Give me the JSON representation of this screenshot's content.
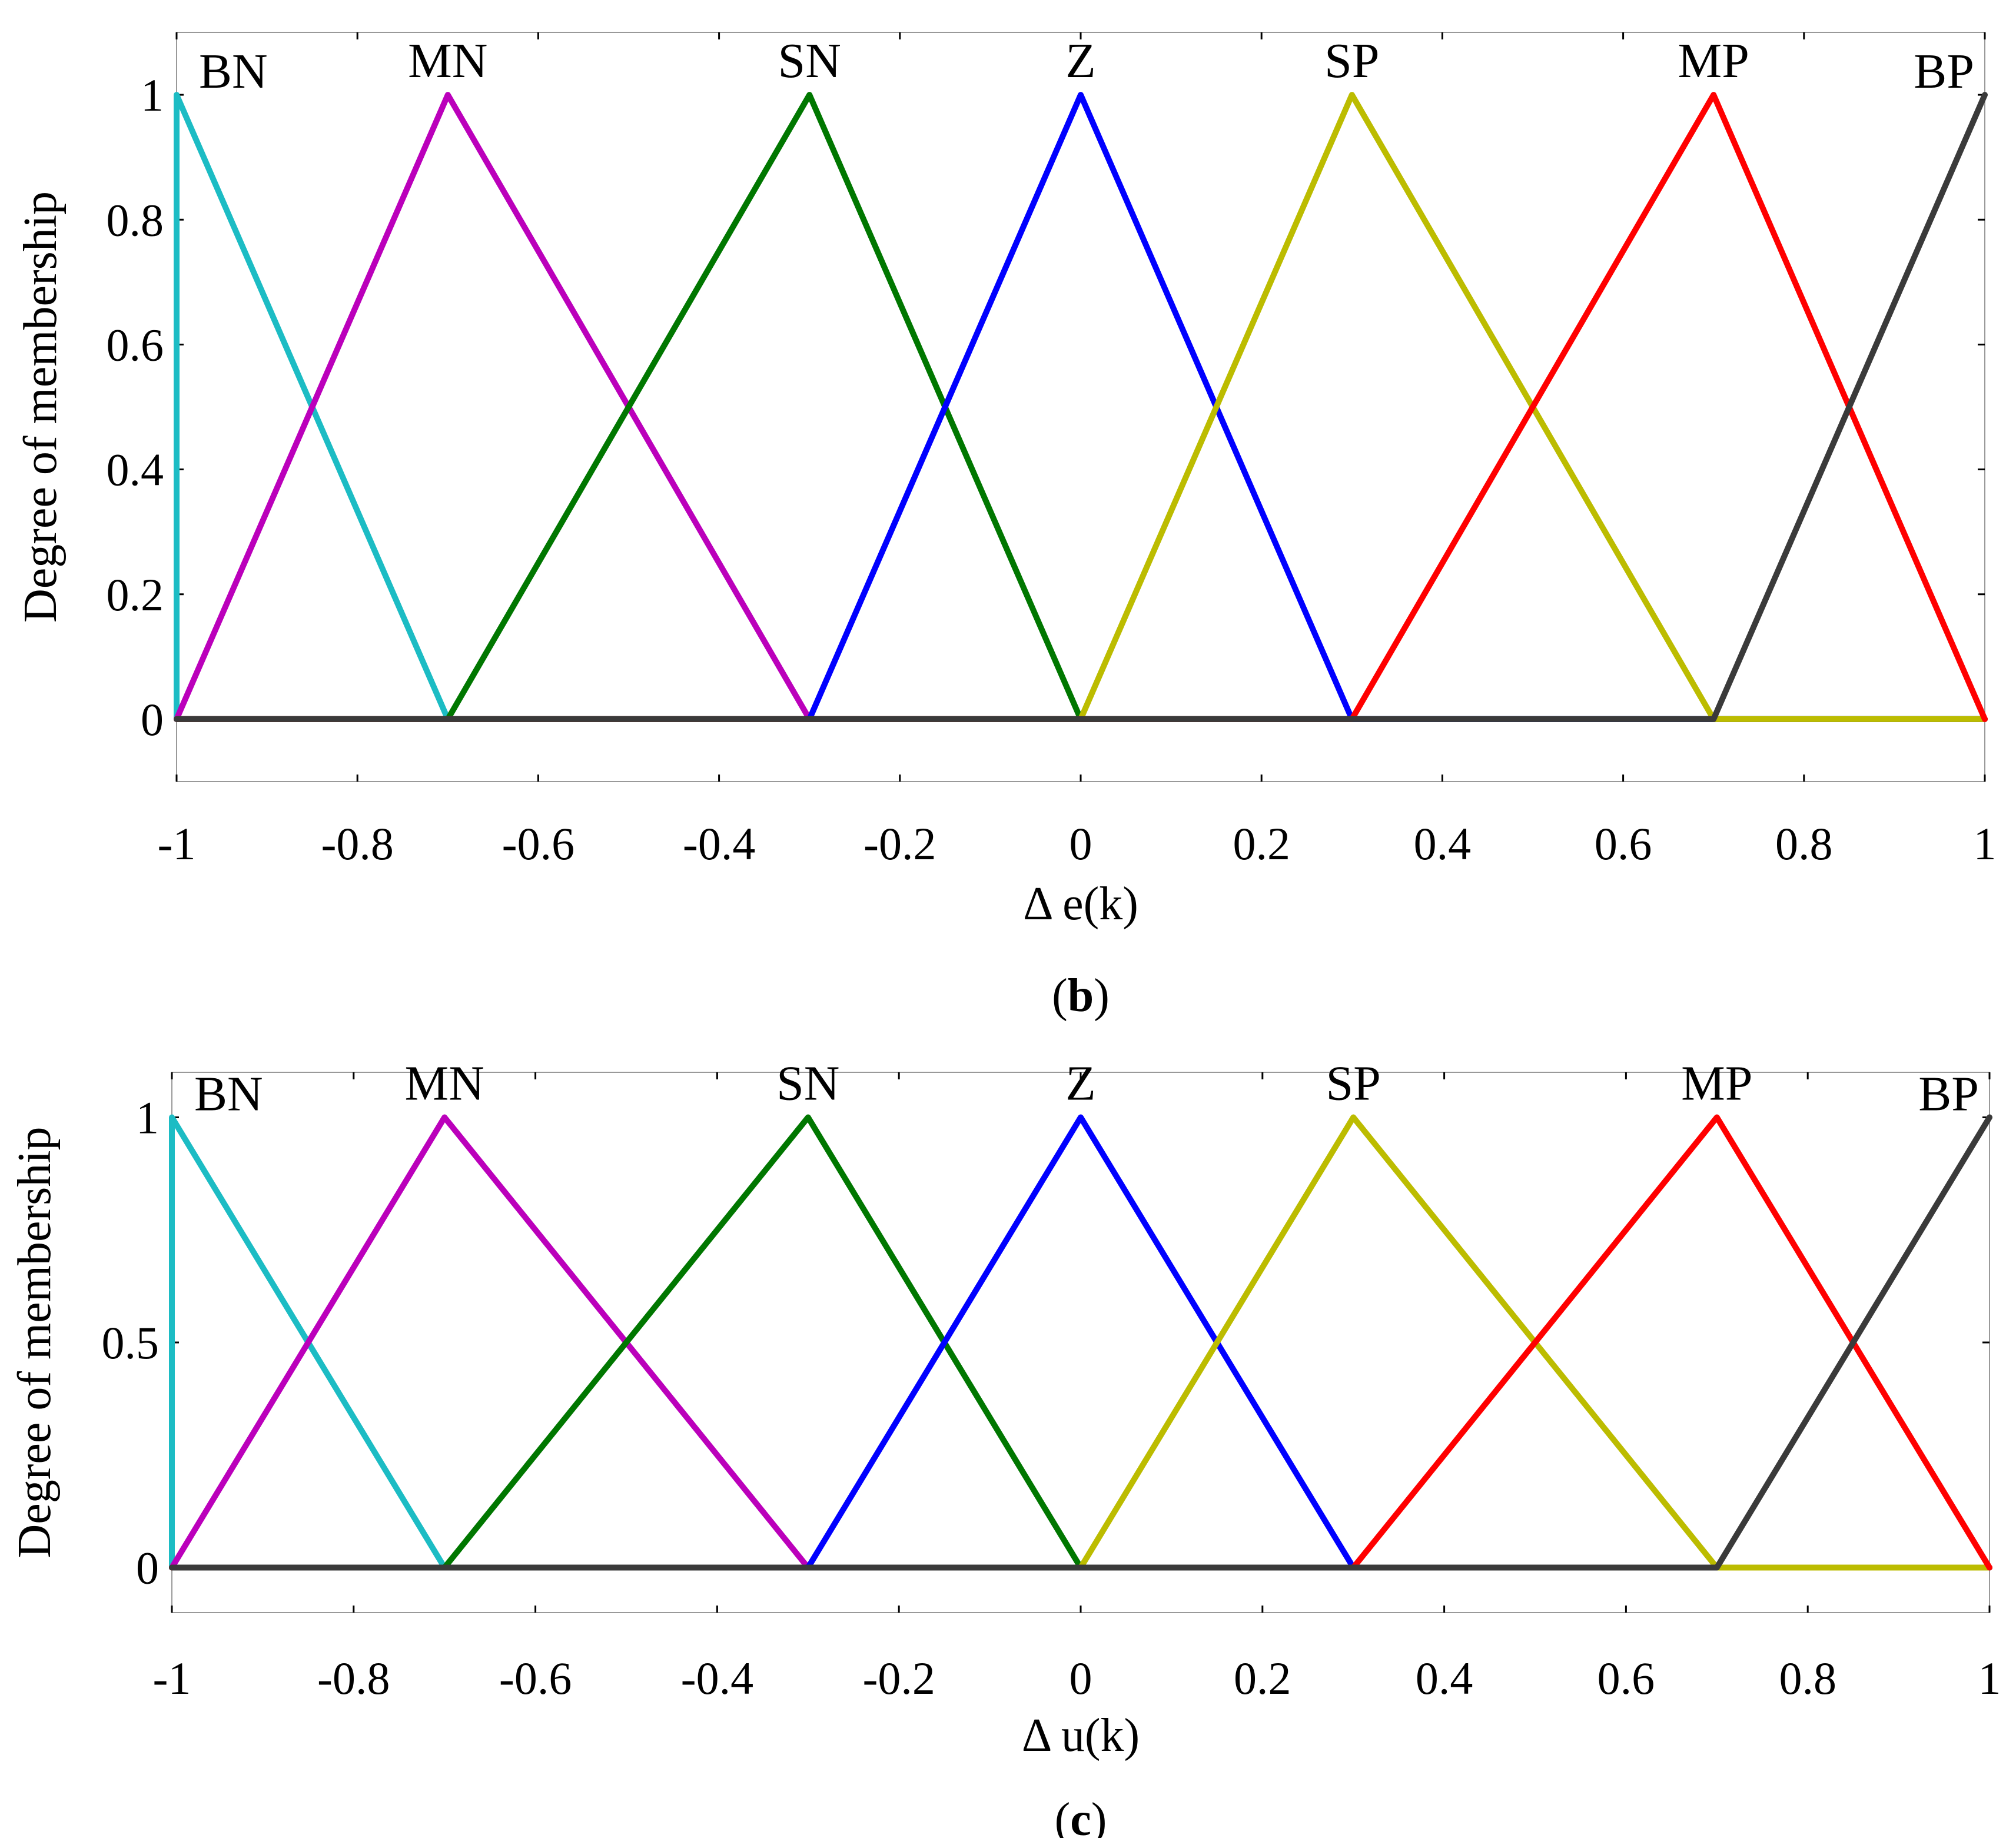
{
  "chart_data": [
    {
      "type": "line",
      "panel_label": "(b)",
      "panel_letter": "b",
      "xlabel": "Δ e(k)",
      "ylabel": "Degree of membership",
      "xlim": [
        -1,
        1
      ],
      "ylim": [
        -0.1,
        1.1
      ],
      "xticks": [
        "-1",
        "-0.8",
        "-0.6",
        "-0.4",
        "-0.2",
        "0",
        "0.2",
        "0.4",
        "0.6",
        "0.8",
        "1"
      ],
      "yticks": [
        {
          "value": 0,
          "label": "0"
        },
        {
          "value": 0.2,
          "label": "0.2"
        },
        {
          "value": 0.4,
          "label": "0.4"
        },
        {
          "value": 0.6,
          "label": "0.6"
        },
        {
          "value": 0.8,
          "label": "0.8"
        },
        {
          "value": 1,
          "label": "1"
        }
      ],
      "series": [
        {
          "name": "BN",
          "color": "#1cbcc4",
          "x": [
            -1,
            -1,
            -0.7
          ]
        },
        {
          "name": "MN",
          "color": "#bb00bb",
          "x": [
            -1,
            -0.7,
            -0.3
          ]
        },
        {
          "name": "SN",
          "color": "#007700",
          "x": [
            -0.7,
            -0.3,
            0
          ]
        },
        {
          "name": "Z",
          "color": "#0000ff",
          "x": [
            -0.3,
            0,
            0.3
          ]
        },
        {
          "name": "SP",
          "color": "#bcbc00",
          "x": [
            0,
            0.3,
            0.7
          ]
        },
        {
          "name": "MP",
          "color": "#ff0000",
          "x": [
            0.3,
            0.7,
            1
          ]
        },
        {
          "name": "BP",
          "color": "#3a3a3a",
          "x": [
            0.7,
            1,
            1
          ]
        }
      ]
    },
    {
      "type": "line",
      "panel_label": "(c)",
      "panel_letter": "c",
      "xlabel": "Δ u(k)",
      "ylabel": "Degree of membership",
      "xlim": [
        -1,
        1
      ],
      "ylim": [
        -0.1,
        1.1
      ],
      "xticks": [
        "-1",
        "-0.8",
        "-0.6",
        "-0.4",
        "-0.2",
        "0",
        "0.2",
        "0.4",
        "0.6",
        "0.8",
        "1"
      ],
      "yticks": [
        {
          "value": 0,
          "label": "0"
        },
        {
          "value": 0.5,
          "label": "0.5"
        },
        {
          "value": 1,
          "label": "1"
        }
      ],
      "series": [
        {
          "name": "BN",
          "color": "#1cbcc4",
          "x": [
            -1,
            -1,
            -0.7
          ]
        },
        {
          "name": "MN",
          "color": "#bb00bb",
          "x": [
            -1,
            -0.7,
            -0.3
          ]
        },
        {
          "name": "SN",
          "color": "#007700",
          "x": [
            -0.7,
            -0.3,
            0
          ]
        },
        {
          "name": "Z",
          "color": "#0000ff",
          "x": [
            -0.3,
            0,
            0.3
          ]
        },
        {
          "name": "SP",
          "color": "#bcbc00",
          "x": [
            0,
            0.3,
            0.7
          ]
        },
        {
          "name": "MP",
          "color": "#ff0000",
          "x": [
            0.3,
            0.7,
            1
          ]
        },
        {
          "name": "BP",
          "color": "#3a3a3a",
          "x": [
            0.7,
            1,
            1
          ]
        }
      ]
    }
  ]
}
